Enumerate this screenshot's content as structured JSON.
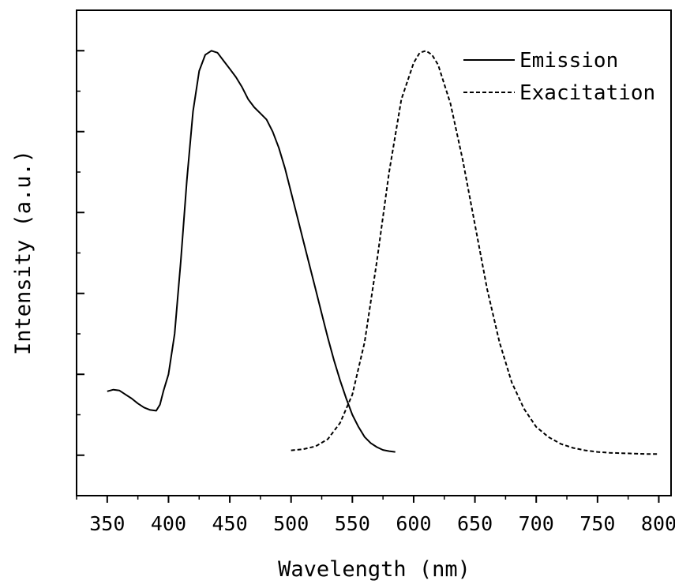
{
  "chart_data": {
    "type": "line",
    "xlabel": "Wavelength (nm)",
    "ylabel": "Intensity (a.u.)",
    "xlim": [
      325,
      810
    ],
    "ylim": [
      -0.1,
      1.1
    ],
    "x_ticks": [
      350,
      400,
      450,
      500,
      550,
      600,
      650,
      700,
      750,
      800
    ],
    "x_tick_labels": [
      "350",
      "400",
      "450",
      "500",
      "550",
      "600",
      "650",
      "700",
      "750",
      "800"
    ],
    "y_tick_labels_shown": false,
    "grid": false,
    "legend": {
      "position": "top-right"
    },
    "series": [
      {
        "name": "Emission",
        "line_style": "solid",
        "color": "#000000",
        "x": [
          350,
          355,
          360,
          365,
          370,
          375,
          380,
          385,
          390,
          393,
          396,
          400,
          405,
          410,
          415,
          420,
          425,
          430,
          435,
          440,
          445,
          450,
          455,
          460,
          465,
          470,
          475,
          480,
          485,
          490,
          495,
          500,
          505,
          510,
          515,
          520,
          525,
          530,
          535,
          540,
          545,
          550,
          555,
          560,
          565,
          570,
          575,
          580,
          585
        ],
        "y": [
          0.158,
          0.162,
          0.16,
          0.15,
          0.14,
          0.128,
          0.118,
          0.112,
          0.11,
          0.125,
          0.16,
          0.2,
          0.3,
          0.48,
          0.68,
          0.85,
          0.95,
          0.99,
          1.0,
          0.995,
          0.975,
          0.955,
          0.935,
          0.91,
          0.88,
          0.86,
          0.845,
          0.83,
          0.8,
          0.76,
          0.71,
          0.65,
          0.59,
          0.53,
          0.47,
          0.41,
          0.35,
          0.29,
          0.235,
          0.185,
          0.14,
          0.1,
          0.07,
          0.045,
          0.03,
          0.02,
          0.013,
          0.01,
          0.008
        ]
      },
      {
        "name": "Exacitation",
        "line_style": "dashed",
        "color": "#000000",
        "x": [
          500,
          510,
          520,
          530,
          540,
          550,
          560,
          570,
          580,
          590,
          600,
          605,
          610,
          615,
          620,
          630,
          640,
          650,
          660,
          670,
          680,
          690,
          700,
          710,
          720,
          730,
          740,
          750,
          760,
          770,
          780,
          790,
          800
        ],
        "y": [
          0.012,
          0.015,
          0.022,
          0.04,
          0.08,
          0.15,
          0.28,
          0.48,
          0.7,
          0.88,
          0.97,
          0.995,
          1.0,
          0.99,
          0.965,
          0.87,
          0.73,
          0.57,
          0.41,
          0.28,
          0.18,
          0.115,
          0.07,
          0.045,
          0.028,
          0.018,
          0.012,
          0.008,
          0.006,
          0.005,
          0.004,
          0.003,
          0.003
        ]
      }
    ]
  }
}
